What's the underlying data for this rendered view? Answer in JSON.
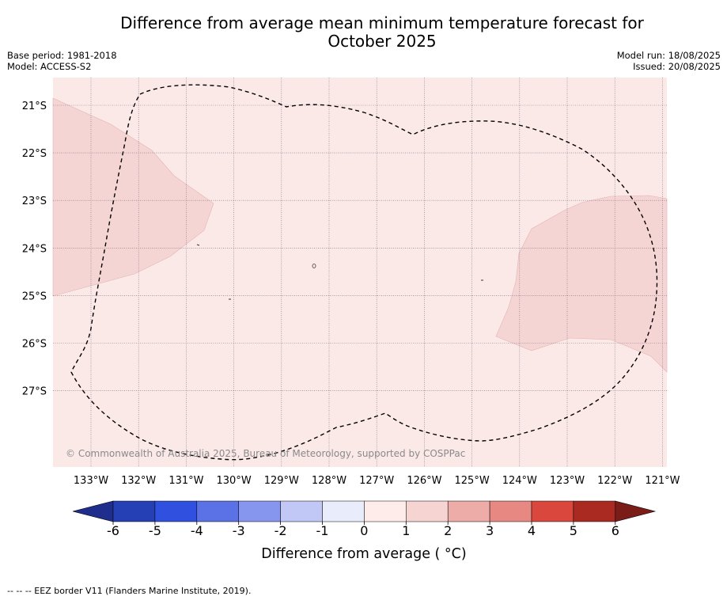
{
  "title": {
    "line1": "Difference from average mean minimum temperature forecast for",
    "line2": "October 2025"
  },
  "meta": {
    "base_period": "Base period: 1981-2018",
    "model": "Model: ACCESS-S2",
    "model_run": "Model run: 18/08/2025",
    "issued": "Issued: 20/08/2025"
  },
  "map": {
    "lat_labels": [
      "21°S",
      "22°S",
      "23°S",
      "24°S",
      "25°S",
      "26°S",
      "27°S"
    ],
    "lon_labels": [
      "133°W",
      "132°W",
      "131°W",
      "130°W",
      "129°W",
      "128°W",
      "127°W",
      "126°W",
      "125°W",
      "124°W",
      "123°W",
      "122°W",
      "121°W"
    ],
    "background_color": "#fbe9e8",
    "anomaly_1_2_color": "#f5d5d4",
    "copyright": "© Commonwealth of Australia 2025, Bureau of Meteorology, supported by COSPPac"
  },
  "colorbar": {
    "labels": [
      "-6",
      "-5",
      "-4",
      "-3",
      "-2",
      "-1",
      "0",
      "1",
      "2",
      "3",
      "4",
      "5",
      "6"
    ],
    "colors": [
      "#1f2e8c",
      "#2540b5",
      "#3050e0",
      "#5b71e6",
      "#8696ee",
      "#c1c8f5",
      "#e9ecfb",
      "#fdecea",
      "#f6d4d2",
      "#eeaca8",
      "#e78982",
      "#d9473d",
      "#aa2a22",
      "#7a1c17"
    ],
    "title": "Difference from average ( °C)"
  },
  "footer": "--  --  -- EEZ border V11 (Flanders Marine Institute, 2019)."
}
